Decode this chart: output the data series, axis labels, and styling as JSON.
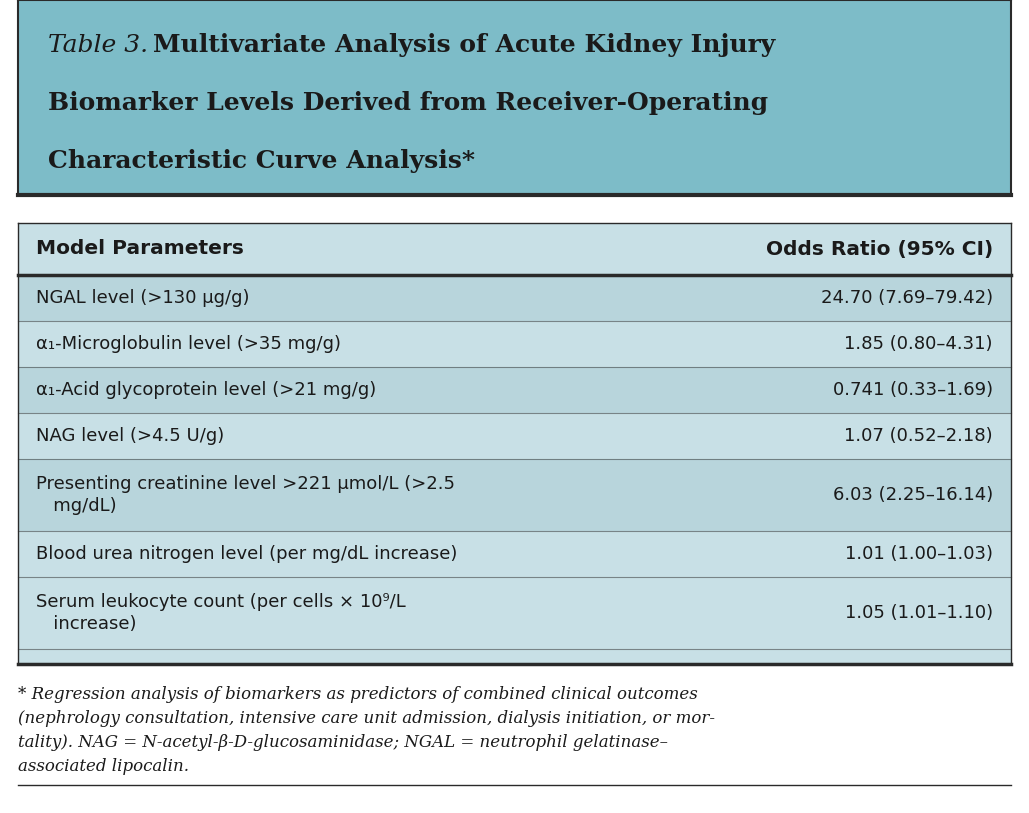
{
  "title_italic": "Table 3.",
  "title_bold_lines": [
    "Multivariate Analysis of Acute Kidney Injury",
    "Biomarker Levels Derived from Receiver-Operating",
    "Characteristic Curve Analysis*"
  ],
  "header_col1": "Model Parameters",
  "header_col2": "Odds Ratio (95% CI)",
  "rows": [
    {
      "param_lines": [
        "NGAL level (>130 μg/g)"
      ],
      "odds": "24.70 (7.69–79.42)",
      "shaded": true
    },
    {
      "param_lines": [
        "α₁-Microglobulin level (>35 mg/g)"
      ],
      "odds": "1.85 (0.80–4.31)",
      "shaded": false
    },
    {
      "param_lines": [
        "α₁-Acid glycoprotein level (>21 mg/g)"
      ],
      "odds": "0.741 (0.33–1.69)",
      "shaded": true
    },
    {
      "param_lines": [
        "NAG level (>4.5 U/g)"
      ],
      "odds": "1.07 (0.52–2.18)",
      "shaded": false
    },
    {
      "param_lines": [
        "Presenting creatinine level >221 μmol/L (>2.5",
        "   mg/dL)"
      ],
      "odds": "6.03 (2.25–16.14)",
      "shaded": true
    },
    {
      "param_lines": [
        "Blood urea nitrogen level (per mg/dL increase)"
      ],
      "odds": "1.01 (1.00–1.03)",
      "shaded": false
    },
    {
      "param_lines": [
        "Serum leukocyte count (per cells × 10⁹/L",
        "   increase)"
      ],
      "odds": "1.05 (1.01–1.10)",
      "shaded": false
    }
  ],
  "footnote_lines": [
    "* Regression analysis of biomarkers as predictors of combined clinical outcomes",
    "(nephrology consultation, intensive care unit admission, dialysis initiation, or mor-",
    "tality). NAG = N-acetyl-β-D-glucosaminidase; NGAL = neutrophil gelatinase–",
    "associated lipocalin."
  ],
  "title_bg": "#7dbcc8",
  "table_bg": "#c8e0e6",
  "shaded_bg": "#b8d5dc",
  "white_bg": "#daeaee",
  "outer_bg": "#ffffff",
  "border_dark": "#2a2a2a",
  "text_color": "#1a1a1a"
}
